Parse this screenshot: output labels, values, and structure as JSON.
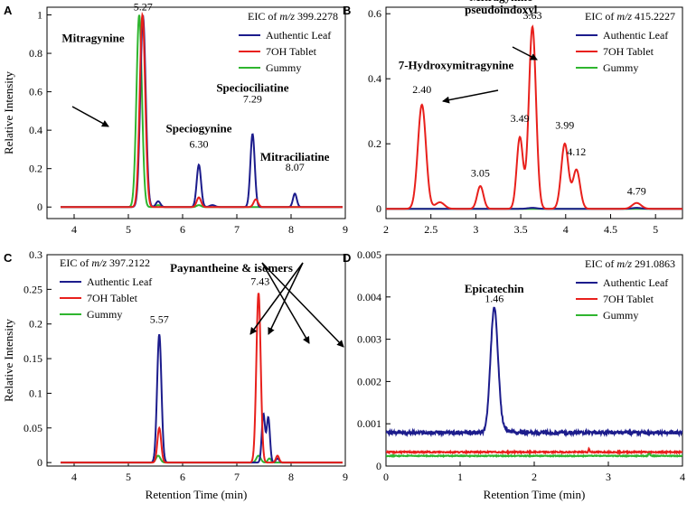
{
  "colors": {
    "authentic_leaf": "#1c1c8c",
    "oh_tablet": "#e8201c",
    "gummy": "#2fb52f"
  },
  "chart_data": [
    {
      "id": "A",
      "type": "line",
      "panel_label": "A",
      "eic_prefix": "EIC of ",
      "eic_mz": "m/z",
      "eic_value": " 399.2278",
      "ylabel": "Relative Intensity",
      "xlabel": "",
      "xlim": [
        3.5,
        9
      ],
      "ylim": [
        -0.06,
        1.04
      ],
      "xticks": [
        "4",
        "5",
        "6",
        "7",
        "8",
        "9"
      ],
      "yticks": [
        "0",
        "0.2",
        "0.4",
        "0.6",
        "0.8",
        "1"
      ],
      "legend": [
        "Authentic Leaf",
        "7OH Tablet",
        "Gummy"
      ],
      "annotations": [
        {
          "text": "5.27",
          "x": 5.27,
          "y": 1.0
        },
        {
          "text": "Mitragynine",
          "bold": true,
          "x": 4.35,
          "y": 0.86
        },
        {
          "text": "Speciogynine",
          "bold": true,
          "x": 6.3,
          "y": 0.39
        },
        {
          "text": "6.30",
          "x": 6.3,
          "y": 0.31
        },
        {
          "text": "Speciociliatine",
          "bold": true,
          "x": 7.29,
          "y": 0.6
        },
        {
          "text": "7.29",
          "x": 7.29,
          "y": 0.52
        },
        {
          "text": "Mitraciliatine",
          "bold": true,
          "x": 8.07,
          "y": 0.24
        },
        {
          "text": "8.07",
          "x": 8.07,
          "y": 0.17
        }
      ],
      "series": [
        {
          "name": "Authentic Leaf",
          "peaks": [
            [
              5.27,
              0.99,
              0.05
            ],
            [
              5.55,
              0.03,
              0.04
            ],
            [
              6.3,
              0.22,
              0.04
            ],
            [
              6.55,
              0.01,
              0.05
            ],
            [
              7.29,
              0.38,
              0.04
            ],
            [
              8.07,
              0.07,
              0.035
            ]
          ]
        },
        {
          "name": "7OH Tablet",
          "peaks": [
            [
              5.26,
              1.0,
              0.05
            ],
            [
              6.3,
              0.05,
              0.04
            ],
            [
              7.35,
              0.04,
              0.04
            ]
          ]
        },
        {
          "name": "Gummy",
          "peaks": [
            [
              5.2,
              1.0,
              0.05
            ],
            [
              5.55,
              0.01,
              0.04
            ],
            [
              6.3,
              0.01,
              0.04
            ]
          ]
        }
      ]
    },
    {
      "id": "B",
      "type": "line",
      "panel_label": "B",
      "eic_prefix": "EIC of ",
      "eic_mz": "m/z",
      "eic_value": " 415.2227",
      "ylabel": "",
      "xlabel": "",
      "xlim": [
        2,
        5.3
      ],
      "ylim": [
        -0.03,
        0.62
      ],
      "xticks": [
        "2",
        "2.5",
        "3",
        "3.5",
        "4",
        "4.5",
        "5"
      ],
      "yticks": [
        "0",
        "0.2",
        "0.4",
        "0.6"
      ],
      "legend": [
        "Authentic Leaf",
        "7OH Tablet",
        "Gummy"
      ],
      "annotations": [
        {
          "text": "Mitragynine",
          "bold": true,
          "x": 3.28,
          "y": 0.64
        },
        {
          "text": "pseudoindoxyl",
          "bold": true,
          "x": 3.28,
          "y": 0.6
        },
        {
          "text": "3.63",
          "x": 3.63,
          "y": 0.57
        },
        {
          "text": "7-Hydroxymitragynine",
          "bold": true,
          "x": 2.78,
          "y": 0.43
        },
        {
          "text": "2.40",
          "x": 2.4,
          "y": 0.34
        },
        {
          "text": "3.05",
          "x": 3.05,
          "y": 0.085
        },
        {
          "text": "3.49",
          "x": 3.49,
          "y": 0.25
        },
        {
          "text": "3.99",
          "x": 3.99,
          "y": 0.23
        },
        {
          "text": "4.12",
          "x": 4.12,
          "y": 0.15
        },
        {
          "text": "4.79",
          "x": 4.79,
          "y": 0.03
        }
      ],
      "series": [
        {
          "name": "Authentic Leaf",
          "peaks": [
            [
              3.63,
              0.003,
              0.05
            ],
            [
              4.79,
              0.003,
              0.05
            ]
          ]
        },
        {
          "name": "7OH Tablet",
          "peaks": [
            [
              2.4,
              0.32,
              0.045
            ],
            [
              2.6,
              0.02,
              0.05
            ],
            [
              3.05,
              0.07,
              0.035
            ],
            [
              3.49,
              0.22,
              0.035
            ],
            [
              3.63,
              0.56,
              0.04
            ],
            [
              3.99,
              0.2,
              0.04
            ],
            [
              4.12,
              0.12,
              0.04
            ],
            [
              4.79,
              0.018,
              0.05
            ]
          ]
        },
        {
          "name": "Gummy",
          "peaks": []
        }
      ]
    },
    {
      "id": "C",
      "type": "line",
      "panel_label": "C",
      "eic_prefix": "EIC of ",
      "eic_mz": "m/z",
      "eic_value": " 397.2122",
      "ylabel": "Relative Intensity",
      "xlabel": "Retention Time (min)",
      "xlim": [
        3.5,
        9
      ],
      "ylim": [
        -0.005,
        0.3
      ],
      "xticks": [
        "4",
        "5",
        "6",
        "7",
        "8",
        "9"
      ],
      "yticks": [
        "0",
        "0.05",
        "0.1",
        "0.15",
        "0.2",
        "0.25",
        "0.3"
      ],
      "legend": [
        "Authentic Leaf",
        "7OH Tablet",
        "Gummy"
      ],
      "annotations": [
        {
          "text": "Paynantheine & isomers",
          "bold": true,
          "x": 6.9,
          "y": 0.275
        },
        {
          "text": "5.57",
          "x": 5.57,
          "y": 0.195
        },
        {
          "text": "7.43",
          "x": 7.43,
          "y": 0.25
        }
      ],
      "series": [
        {
          "name": "Authentic Leaf",
          "peaks": [
            [
              5.57,
              0.185,
              0.04
            ],
            [
              7.49,
              0.07,
              0.03
            ],
            [
              7.58,
              0.065,
              0.03
            ],
            [
              7.75,
              0.006,
              0.03
            ]
          ]
        },
        {
          "name": "7OH Tablet",
          "peaks": [
            [
              5.57,
              0.05,
              0.035
            ],
            [
              7.4,
              0.245,
              0.04
            ],
            [
              7.75,
              0.01,
              0.03
            ]
          ]
        },
        {
          "name": "Gummy",
          "peaks": [
            [
              5.55,
              0.01,
              0.04
            ],
            [
              7.4,
              0.01,
              0.04
            ],
            [
              7.6,
              0.006,
              0.03
            ]
          ]
        }
      ]
    },
    {
      "id": "D",
      "type": "line",
      "panel_label": "D",
      "eic_prefix": "EIC of ",
      "eic_mz": "m/z",
      "eic_value": " 291.0863",
      "ylabel": "",
      "xlabel": "Retention Time (min)",
      "xlim": [
        0,
        4
      ],
      "ylim": [
        0,
        0.005
      ],
      "xticks": [
        "0",
        "1",
        "2",
        "3",
        "4"
      ],
      "yticks": [
        "0",
        "0.001",
        "0.002",
        "0.003",
        "0.004",
        "0.005"
      ],
      "legend": [
        "Authentic Leaf",
        "7OH Tablet",
        "Gummy"
      ],
      "annotations": [
        {
          "text": "Epicatechin",
          "bold": true,
          "x": 1.46,
          "y": 0.0041
        },
        {
          "text": "1.46",
          "x": 1.46,
          "y": 0.00375
        }
      ],
      "series": [
        {
          "name": "Authentic Leaf",
          "baseline": 0.00079,
          "noise": 4e-05,
          "peaks": [
            [
              1.46,
              0.0029,
              0.05
            ],
            [
              1.56,
              0.0001,
              0.08
            ]
          ]
        },
        {
          "name": "7OH Tablet",
          "baseline": 0.00033,
          "noise": 1.5e-05,
          "peaks": [
            [
              2.74,
              8e-05,
              0.008
            ]
          ]
        },
        {
          "name": "Gummy",
          "baseline": 0.00024,
          "noise": 1e-05,
          "peaks": [
            [
              3.55,
              8e-05,
              0.01
            ]
          ]
        }
      ]
    }
  ]
}
